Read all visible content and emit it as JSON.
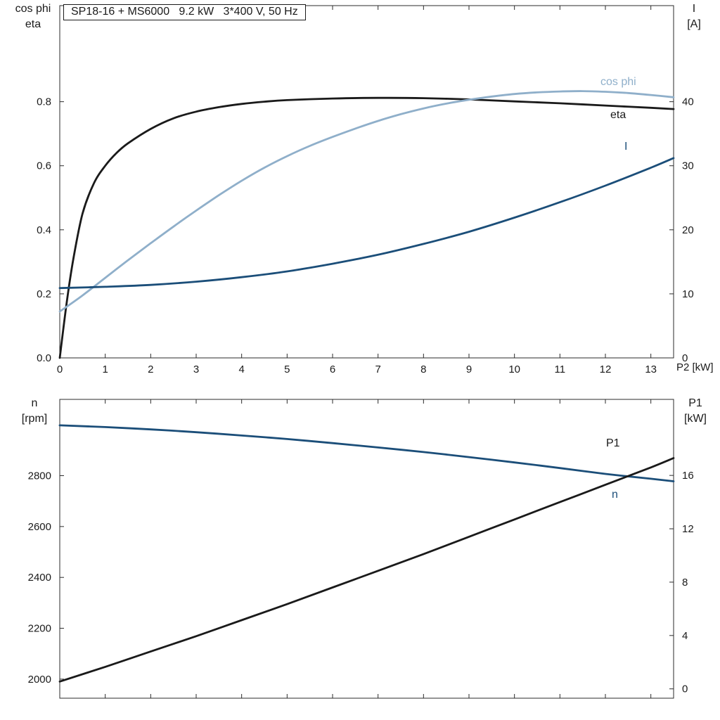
{
  "chart_data": [
    {
      "type": "line",
      "title": "SP18-16 + MS6000   9.2 kW   3*400 V, 50 Hz",
      "xlabel": "P2 [kW]",
      "left_axis_title_lines": [
        "cos phi",
        "eta"
      ],
      "right_axis_title_lines": [
        "I",
        "[A]"
      ],
      "xlim": [
        0,
        13.5
      ],
      "left_ylim": [
        0,
        1.1
      ],
      "right_ylim": [
        0,
        55
      ],
      "xticks": [
        0,
        1,
        2,
        3,
        4,
        5,
        6,
        7,
        8,
        9,
        10,
        11,
        12,
        13
      ],
      "xtick_labels": [
        "0",
        "1",
        "2",
        "3",
        "4",
        "5",
        "6",
        "7",
        "8",
        "9",
        "10",
        "11",
        "12",
        "13"
      ],
      "left_yticks": [
        0,
        0.2,
        0.4,
        0.6,
        0.8
      ],
      "left_ytick_labels": [
        "0.0",
        "0.2",
        "0.4",
        "0.6",
        "0.8"
      ],
      "right_yticks": [
        0,
        10,
        20,
        30,
        40
      ],
      "right_ytick_labels": [
        "0",
        "10",
        "20",
        "30",
        "40"
      ],
      "grid": false,
      "legend_position": "curve-end-labels",
      "series": [
        {
          "name": "eta",
          "label": "eta",
          "axis": "left",
          "color": "#1a1a1a",
          "points": [
            [
              0,
              0
            ],
            [
              0.15,
              0.17
            ],
            [
              0.3,
              0.31
            ],
            [
              0.5,
              0.45
            ],
            [
              0.75,
              0.545
            ],
            [
              1,
              0.6
            ],
            [
              1.25,
              0.64
            ],
            [
              1.5,
              0.67
            ],
            [
              2,
              0.715
            ],
            [
              2.5,
              0.748
            ],
            [
              3,
              0.769
            ],
            [
              3.5,
              0.783
            ],
            [
              4,
              0.793
            ],
            [
              4.5,
              0.8
            ],
            [
              5,
              0.805
            ],
            [
              6,
              0.81
            ],
            [
              7,
              0.812
            ],
            [
              8,
              0.811
            ],
            [
              9,
              0.807
            ],
            [
              10,
              0.801
            ],
            [
              11,
              0.795
            ],
            [
              12,
              0.788
            ],
            [
              13,
              0.781
            ],
            [
              13.5,
              0.777
            ]
          ]
        },
        {
          "name": "cos-phi",
          "label": "cos phi",
          "axis": "left",
          "color": "#8fafca",
          "points": [
            [
              0,
              0.145
            ],
            [
              0.5,
              0.195
            ],
            [
              1,
              0.25
            ],
            [
              1.5,
              0.305
            ],
            [
              2,
              0.358
            ],
            [
              2.5,
              0.41
            ],
            [
              3,
              0.46
            ],
            [
              3.5,
              0.508
            ],
            [
              4,
              0.553
            ],
            [
              4.5,
              0.594
            ],
            [
              5,
              0.63
            ],
            [
              5.5,
              0.662
            ],
            [
              6,
              0.69
            ],
            [
              6.5,
              0.716
            ],
            [
              7,
              0.74
            ],
            [
              7.5,
              0.761
            ],
            [
              8,
              0.779
            ],
            [
              8.5,
              0.794
            ],
            [
              9,
              0.806
            ],
            [
              9.5,
              0.816
            ],
            [
              10,
              0.824
            ],
            [
              10.5,
              0.829
            ],
            [
              11,
              0.832
            ],
            [
              11.5,
              0.833
            ],
            [
              12,
              0.831
            ],
            [
              12.5,
              0.827
            ],
            [
              13,
              0.821
            ],
            [
              13.5,
              0.814
            ]
          ]
        },
        {
          "name": "current",
          "label": "I",
          "axis": "right",
          "color": "#1b4e79",
          "points": [
            [
              0,
              10.9
            ],
            [
              1,
              11.1
            ],
            [
              2,
              11.4
            ],
            [
              3,
              11.9
            ],
            [
              4,
              12.6
            ],
            [
              5,
              13.5
            ],
            [
              6,
              14.7
            ],
            [
              7,
              16.1
            ],
            [
              8,
              17.8
            ],
            [
              9,
              19.7
            ],
            [
              10,
              21.9
            ],
            [
              11,
              24.3
            ],
            [
              12,
              26.9
            ],
            [
              13,
              29.7
            ],
            [
              13.5,
              31.2
            ]
          ]
        }
      ]
    },
    {
      "type": "line",
      "title": "",
      "xlabel": "",
      "left_axis_title_lines": [
        "n",
        "[rpm]"
      ],
      "right_axis_title_lines": [
        "P1",
        "[kW]"
      ],
      "xlim": [
        0,
        13.5
      ],
      "left_ylim": [
        1925,
        3100
      ],
      "right_ylim": [
        -0.7,
        21.7
      ],
      "xticks": [
        0,
        1,
        2,
        3,
        4,
        5,
        6,
        7,
        8,
        9,
        10,
        11,
        12,
        13
      ],
      "xtick_labels": [],
      "left_yticks": [
        2000,
        2200,
        2400,
        2600,
        2800
      ],
      "left_ytick_labels": [
        "2000",
        "2200",
        "2400",
        "2600",
        "2800"
      ],
      "right_yticks": [
        0,
        4,
        8,
        12,
        16
      ],
      "right_ytick_labels": [
        "0",
        "4",
        "8",
        "12",
        "16"
      ],
      "grid": false,
      "legend_position": "curve-end-labels",
      "series": [
        {
          "name": "n",
          "label": "n",
          "axis": "left",
          "color": "#1b4e79",
          "points": [
            [
              0,
              2998
            ],
            [
              1,
              2991
            ],
            [
              2,
              2982
            ],
            [
              3,
              2971
            ],
            [
              4,
              2958
            ],
            [
              5,
              2944
            ],
            [
              6,
              2928
            ],
            [
              7,
              2911
            ],
            [
              8,
              2893
            ],
            [
              9,
              2873
            ],
            [
              10,
              2852
            ],
            [
              11,
              2830
            ],
            [
              12,
              2807
            ],
            [
              13,
              2788
            ],
            [
              13.5,
              2778
            ]
          ]
        },
        {
          "name": "p1",
          "label": "P1",
          "axis": "right",
          "color": "#1a1a1a",
          "points": [
            [
              0,
              0.55
            ],
            [
              1,
              1.65
            ],
            [
              2,
              2.8
            ],
            [
              3,
              3.95
            ],
            [
              4,
              5.15
            ],
            [
              5,
              6.35
            ],
            [
              6,
              7.6
            ],
            [
              7,
              8.85
            ],
            [
              8,
              10.1
            ],
            [
              9,
              11.4
            ],
            [
              10,
              12.7
            ],
            [
              11,
              14.0
            ],
            [
              12,
              15.3
            ],
            [
              13,
              16.6
            ],
            [
              13.5,
              17.3
            ]
          ]
        }
      ]
    }
  ],
  "style_colors": {
    "axis_line": "#2b2b2b",
    "tick_text": "#1a1a1a"
  }
}
